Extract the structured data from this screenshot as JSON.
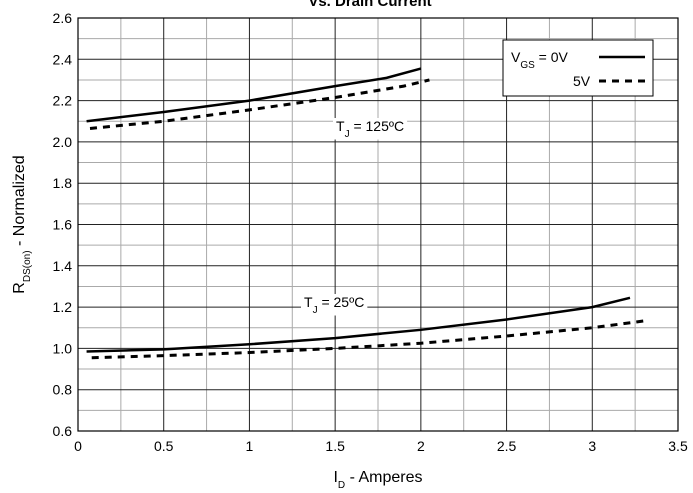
{
  "chart_data": {
    "type": "line",
    "title": "Vs. Drain Current",
    "x_label": {
      "main": "I",
      "sub": "D",
      "rest": " - Amperes"
    },
    "y_label": {
      "main": "R",
      "sub": "DS(on)",
      "rest": " - Normalized"
    },
    "xlim": [
      0,
      3.5
    ],
    "ylim": [
      0.6,
      2.6
    ],
    "xticks": [
      0,
      0.5,
      1,
      1.5,
      2,
      2.5,
      3,
      3.5
    ],
    "yticks": [
      0.6,
      0.8,
      {
        "value": 1,
        "label": "1.0"
      },
      1.2,
      1.4,
      1.6,
      1.8,
      {
        "value": 2,
        "label": "2.0"
      },
      2.2,
      2.4,
      2.6
    ],
    "minor_xticks": [
      0.25,
      0.75,
      1.25,
      1.75,
      2.25,
      2.75,
      3.25
    ],
    "minor_yticks": [
      0.7,
      0.9,
      1.1,
      1.3,
      1.5,
      1.7,
      1.9,
      2.1,
      2.3,
      2.5
    ],
    "grid": true,
    "legend": {
      "prefix": "V",
      "prefix_sub": "GS",
      "labels": [
        " = 0V",
        "5V"
      ],
      "position": "upper right"
    },
    "annotations": [
      {
        "main": "T",
        "sub": "J",
        "rest": " = 125ºC"
      },
      {
        "main": "T",
        "sub": "J",
        "rest": " = 25ºC"
      }
    ],
    "series": [
      {
        "color": "#000000",
        "style": "solid",
        "legend": 0,
        "x": [
          0.05,
          0.5,
          1.0,
          1.5,
          1.8,
          2.0
        ],
        "values": [
          2.1,
          2.145,
          2.2,
          2.27,
          2.31,
          2.355
        ]
      },
      {
        "color": "#000000",
        "style": "dashed",
        "legend": 1,
        "x": [
          0.07,
          0.5,
          1.0,
          1.5,
          1.9,
          2.05
        ],
        "values": [
          2.065,
          2.1,
          2.155,
          2.215,
          2.27,
          2.3
        ]
      },
      {
        "color": "#000000",
        "style": "solid",
        "legend": 0,
        "x": [
          0.05,
          0.5,
          1.0,
          1.5,
          2.0,
          2.5,
          3.0,
          3.22
        ],
        "values": [
          0.985,
          0.995,
          1.02,
          1.05,
          1.09,
          1.14,
          1.2,
          1.245
        ]
      },
      {
        "color": "#000000",
        "style": "dashed",
        "legend": 1,
        "x": [
          0.08,
          0.5,
          1.0,
          1.5,
          2.0,
          2.5,
          3.0,
          3.32
        ],
        "values": [
          0.955,
          0.965,
          0.98,
          1.0,
          1.025,
          1.06,
          1.1,
          1.135
        ]
      }
    ]
  }
}
